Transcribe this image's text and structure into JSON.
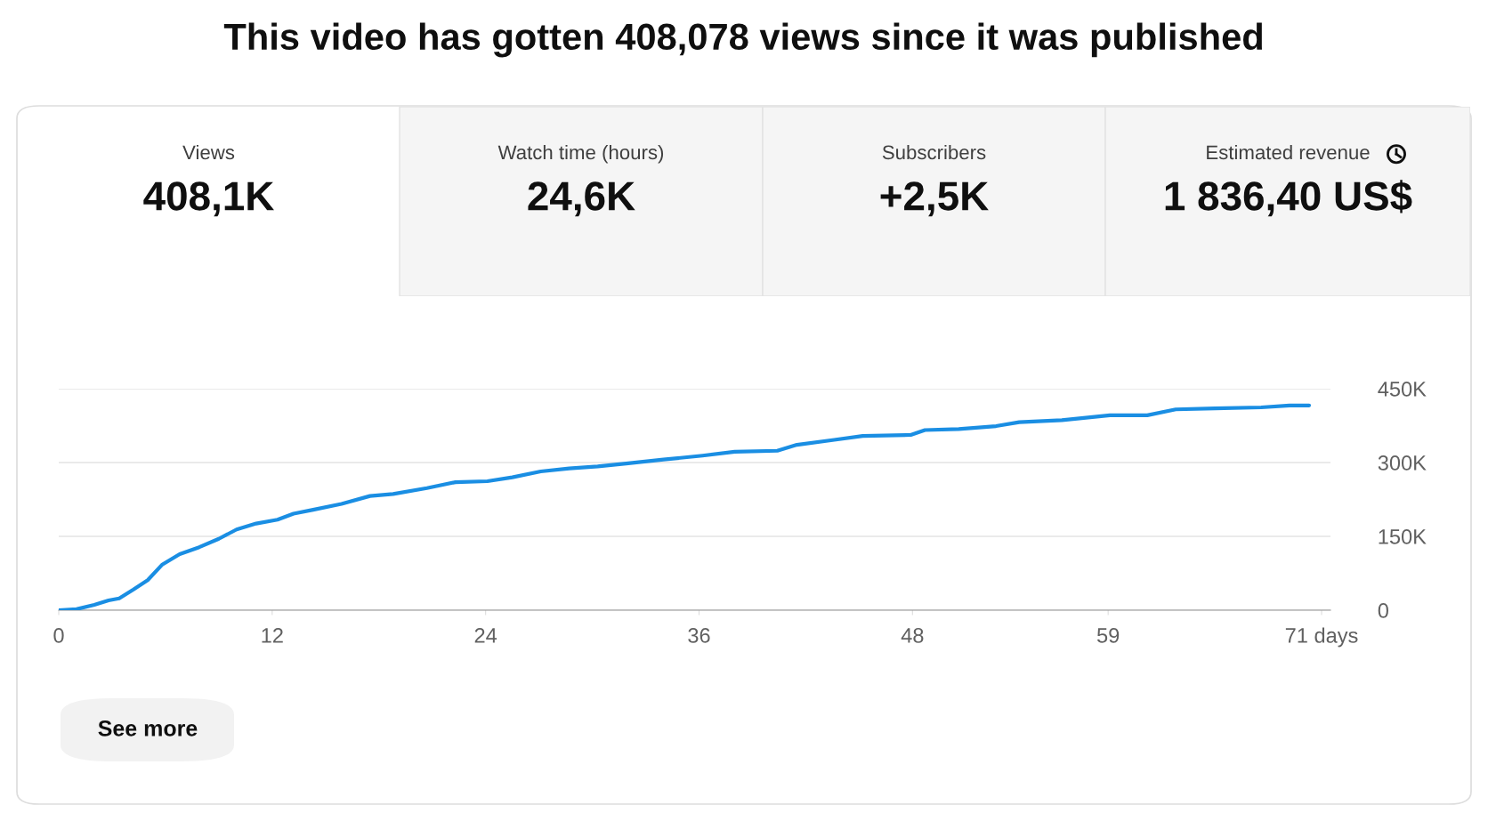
{
  "chart_data": [
    {
      "type": "other",
      "title": "This video has gotten 408,078 views since it was published",
      "annotations": [
        "Views",
        "408,1K",
        "Watch time (hours)",
        "24,6K",
        "Subscribers",
        "+2,5K",
        "Estimated revenue",
        "1 836,40 US$"
      ]
    },
    {
      "type": "line",
      "x": [
        0,
        1,
        2,
        2.8,
        3.4,
        4.2,
        5,
        5.8,
        6.8,
        7.9,
        9,
        10,
        11.1,
        12.3,
        13.2,
        14.3,
        15.9,
        17.5,
        18.8,
        20.7,
        22.3,
        24.1,
        25.5,
        27.1,
        28.7,
        30.3,
        31.9,
        34,
        36.2,
        38,
        40.4,
        41.5,
        43.6,
        45.2,
        47.9,
        48.7,
        50.6,
        52.7,
        54,
        56.4,
        59.1,
        61.2,
        62.8,
        65,
        67.6,
        69.2,
        70.3
      ],
      "series": [
        {
          "color": "#1a8ee3",
          "values": [
            0,
            2000,
            11000,
            20000,
            24000,
            42000,
            61000,
            92000,
            114000,
            128000,
            145000,
            164000,
            176000,
            184000,
            196000,
            204000,
            216000,
            232000,
            236000,
            248000,
            260000,
            262000,
            270000,
            282000,
            288000,
            292000,
            298000,
            306000,
            314000,
            322000,
            324000,
            336000,
            346000,
            354000,
            356000,
            366000,
            368000,
            374000,
            382000,
            386000,
            396000,
            396000,
            408000,
            410000,
            412000,
            416000,
            416000
          ]
        }
      ],
      "xlim": [
        0,
        71.5
      ],
      "xticks": [
        0,
        12,
        24,
        36,
        48,
        59,
        {
          "value": 71,
          "label": "71 days"
        }
      ],
      "ylim": [
        0,
        450000
      ],
      "yticks": [
        {
          "value": 0,
          "label": "0"
        },
        {
          "value": 150000,
          "label": "150K"
        },
        {
          "value": 300000,
          "label": "300K"
        },
        {
          "value": 450000,
          "label": "450K"
        }
      ],
      "grid": "y",
      "annotations": [
        "See more"
      ]
    }
  ]
}
